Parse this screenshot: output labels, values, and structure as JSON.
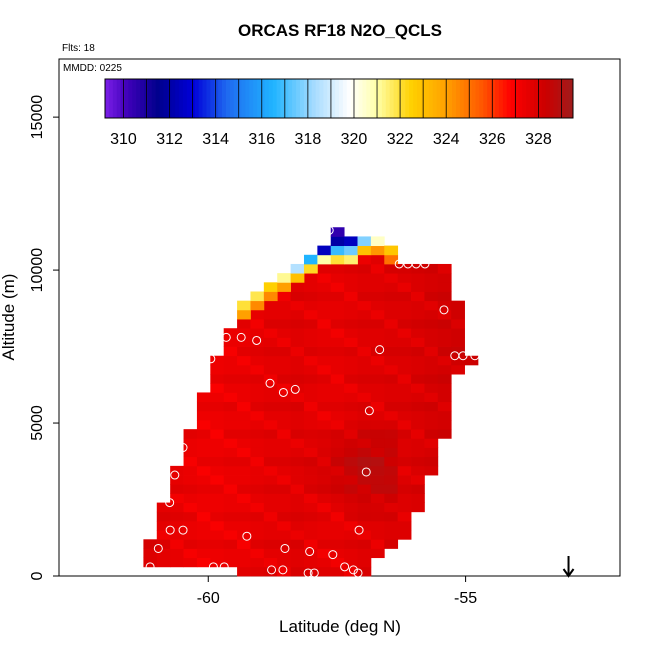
{
  "chart_data": {
    "type": "heatmap",
    "title": "ORCAS RF18 N2O_QCLS",
    "flights_label": "Flts: 18",
    "date_label": "MMDD: 0225",
    "xlabel": "Latitude (deg N)",
    "ylabel": "Altitude (m)",
    "xlim": [
      -62.9,
      -52.0
    ],
    "ylim": [
      0,
      16900
    ],
    "xticks": [
      -60,
      -55
    ],
    "xtick_labels": [
      "-60",
      "-55"
    ],
    "yticks": [
      0,
      5000,
      10000,
      15000
    ],
    "ytick_labels": [
      "0",
      "5000",
      "10000",
      "15000"
    ],
    "colorbar": {
      "min": 309.2,
      "max": 329.5,
      "ticks": [
        310,
        312,
        314,
        316,
        318,
        320,
        322,
        324,
        326,
        328
      ],
      "tick_labels": [
        "310",
        "312",
        "314",
        "316",
        "318",
        "320",
        "322",
        "324",
        "326",
        "328"
      ],
      "stops": [
        {
          "v": 309.2,
          "c": "#7b1fe8"
        },
        {
          "v": 310.2,
          "c": "#3e00b8"
        },
        {
          "v": 311.5,
          "c": "#00008c"
        },
        {
          "v": 313.0,
          "c": "#0000d8"
        },
        {
          "v": 314.5,
          "c": "#1f6af0"
        },
        {
          "v": 316.5,
          "c": "#20b4ff"
        },
        {
          "v": 318.3,
          "c": "#a8dcff"
        },
        {
          "v": 319.8,
          "c": "#ffffff"
        },
        {
          "v": 321.0,
          "c": "#ffffa8"
        },
        {
          "v": 322.5,
          "c": "#ffd000"
        },
        {
          "v": 324.0,
          "c": "#ffa000"
        },
        {
          "v": 325.5,
          "c": "#ff5a00"
        },
        {
          "v": 326.8,
          "c": "#ff0000"
        },
        {
          "v": 328.3,
          "c": "#cc0000"
        },
        {
          "v": 329.5,
          "c": "#a01c1c"
        }
      ]
    },
    "cell": {
      "dlat": 0.26,
      "dalt": 300
    },
    "columns": [
      {
        "lat": -61.13,
        "bottom": 300,
        "top": 1050,
        "value": 327.8
      },
      {
        "lat": -60.87,
        "bottom": 300,
        "top": 2250,
        "value": 327.6
      },
      {
        "lat": -60.61,
        "bottom": 300,
        "top": 3450,
        "value": 327.5
      },
      {
        "lat": -60.35,
        "bottom": 300,
        "top": 4650,
        "value": 327.4
      },
      {
        "lat": -60.09,
        "bottom": 300,
        "top": 6000,
        "value": 327.3
      },
      {
        "lat": -59.83,
        "bottom": 300,
        "top": 7200,
        "value": 327.3
      },
      {
        "lat": -59.57,
        "bottom": 300,
        "top": 8100,
        "value": 327.4
      },
      {
        "lat": -59.31,
        "bottom": 0,
        "top": 8400,
        "value": 327.4
      },
      {
        "lat": -59.05,
        "bottom": 0,
        "top": 8700,
        "value": 327.5
      },
      {
        "lat": -58.79,
        "bottom": 0,
        "top": 9000,
        "value": 327.6
      },
      {
        "lat": -58.53,
        "bottom": 0,
        "top": 9300,
        "value": 327.6
      },
      {
        "lat": -58.27,
        "bottom": 0,
        "top": 9600,
        "value": 327.7
      },
      {
        "lat": -58.01,
        "bottom": 0,
        "top": 9900,
        "value": 327.6
      },
      {
        "lat": -57.75,
        "bottom": 0,
        "top": 10200,
        "value": 327.5
      },
      {
        "lat": -57.49,
        "bottom": 0,
        "top": 10200,
        "value": 327.5
      },
      {
        "lat": -57.23,
        "bottom": 0,
        "top": 10200,
        "value": 327.6
      },
      {
        "lat": -56.97,
        "bottom": 0,
        "top": 10500,
        "value": 327.7
      },
      {
        "lat": -56.71,
        "bottom": 600,
        "top": 10500,
        "value": 327.7
      },
      {
        "lat": -56.45,
        "bottom": 900,
        "top": 10200,
        "value": 327.8
      },
      {
        "lat": -56.19,
        "bottom": 1200,
        "top": 10200,
        "value": 327.8
      },
      {
        "lat": -55.93,
        "bottom": 2100,
        "top": 10200,
        "value": 327.9
      },
      {
        "lat": -55.67,
        "bottom": 3300,
        "top": 10200,
        "value": 328.0
      },
      {
        "lat": -55.41,
        "bottom": 4500,
        "top": 10200,
        "value": 328.1
      },
      {
        "lat": -55.15,
        "bottom": 6600,
        "top": 9000,
        "value": 328.2
      },
      {
        "lat": -54.89,
        "bottom": 6900,
        "top": 7200,
        "value": 328.3
      }
    ],
    "top_gradient": [
      {
        "lat": -59.31,
        "alt": 8400,
        "value": 324.0
      },
      {
        "lat": -59.31,
        "alt": 8700,
        "value": 322.0
      },
      {
        "lat": -59.05,
        "alt": 8700,
        "value": 324.5
      },
      {
        "lat": -59.05,
        "alt": 9000,
        "value": 321.8
      },
      {
        "lat": -58.79,
        "alt": 9000,
        "value": 324.5
      },
      {
        "lat": -58.79,
        "alt": 9300,
        "value": 322.5
      },
      {
        "lat": -58.53,
        "alt": 9300,
        "value": 324.0
      },
      {
        "lat": -58.53,
        "alt": 9600,
        "value": 321.2
      },
      {
        "lat": -58.27,
        "alt": 9600,
        "value": 323.0
      },
      {
        "lat": -58.27,
        "alt": 9900,
        "value": 318.5
      },
      {
        "lat": -58.01,
        "alt": 9900,
        "value": 322.2
      },
      {
        "lat": -58.01,
        "alt": 10200,
        "value": 316.5
      },
      {
        "lat": -57.75,
        "alt": 10200,
        "value": 321.0
      },
      {
        "lat": -57.75,
        "alt": 10500,
        "value": 312.5
      },
      {
        "lat": -57.49,
        "alt": 10200,
        "value": 322.0
      },
      {
        "lat": -57.49,
        "alt": 10500,
        "value": 316.8
      },
      {
        "lat": -57.49,
        "alt": 10800,
        "value": 312.0
      },
      {
        "lat": -57.49,
        "alt": 11100,
        "value": 310.5
      },
      {
        "lat": -57.23,
        "alt": 10200,
        "value": 321.5
      },
      {
        "lat": -57.23,
        "alt": 10500,
        "value": 317.5
      },
      {
        "lat": -57.23,
        "alt": 10800,
        "value": 312.5
      },
      {
        "lat": -56.97,
        "alt": 10500,
        "value": 323.0
      },
      {
        "lat": -56.97,
        "alt": 10800,
        "value": 317.8
      },
      {
        "lat": -56.71,
        "alt": 10500,
        "value": 324.2
      },
      {
        "lat": -56.71,
        "alt": 10800,
        "value": 320.6
      },
      {
        "lat": -56.45,
        "alt": 10200,
        "value": 325.0
      },
      {
        "lat": -56.45,
        "alt": 10500,
        "value": 322.8
      }
    ],
    "hot_region": {
      "lat_min": -58.8,
      "lat_max": -56.2,
      "alt_min": 1600,
      "alt_max": 5200,
      "value": 326.6
    },
    "flight_points": [
      {
        "lat": -61.13,
        "alt": 300
      },
      {
        "lat": -60.97,
        "alt": 900
      },
      {
        "lat": -60.75,
        "alt": 2400
      },
      {
        "lat": -60.65,
        "alt": 3300
      },
      {
        "lat": -60.74,
        "alt": 1500
      },
      {
        "lat": -60.49,
        "alt": 1500
      },
      {
        "lat": -60.49,
        "alt": 4200
      },
      {
        "lat": -59.95,
        "alt": 7100
      },
      {
        "lat": -59.9,
        "alt": 300
      },
      {
        "lat": -59.69,
        "alt": 300
      },
      {
        "lat": -59.65,
        "alt": 7800
      },
      {
        "lat": -59.36,
        "alt": 7800
      },
      {
        "lat": -59.25,
        "alt": 1300
      },
      {
        "lat": -59.06,
        "alt": 7700
      },
      {
        "lat": -58.8,
        "alt": 6300
      },
      {
        "lat": -58.77,
        "alt": 200
      },
      {
        "lat": -58.55,
        "alt": 200
      },
      {
        "lat": -58.54,
        "alt": 6000
      },
      {
        "lat": -58.51,
        "alt": 900
      },
      {
        "lat": -58.31,
        "alt": 6100
      },
      {
        "lat": -58.06,
        "alt": 100
      },
      {
        "lat": -57.94,
        "alt": 100
      },
      {
        "lat": -58.03,
        "alt": 800
      },
      {
        "lat": -57.65,
        "alt": 11300
      },
      {
        "lat": -57.58,
        "alt": 700
      },
      {
        "lat": -57.35,
        "alt": 300
      },
      {
        "lat": -57.18,
        "alt": 200
      },
      {
        "lat": -57.09,
        "alt": 100
      },
      {
        "lat": -57.07,
        "alt": 1500
      },
      {
        "lat": -56.93,
        "alt": 3400
      },
      {
        "lat": -56.87,
        "alt": 5400
      },
      {
        "lat": -56.67,
        "alt": 7400
      },
      {
        "lat": -56.29,
        "alt": 10200
      },
      {
        "lat": -56.12,
        "alt": 10200
      },
      {
        "lat": -55.96,
        "alt": 10200
      },
      {
        "lat": -55.79,
        "alt": 10200
      },
      {
        "lat": -55.42,
        "alt": 8700
      },
      {
        "lat": -55.21,
        "alt": 7200
      },
      {
        "lat": -55.05,
        "alt": 7200
      },
      {
        "lat": -54.82,
        "alt": 7200
      }
    ],
    "arrow_marker": {
      "lat": -53.0,
      "direction": "down"
    }
  },
  "colors": {
    "frame": "#000000",
    "background": "#ffffff",
    "point_stroke": "#ffffff"
  }
}
